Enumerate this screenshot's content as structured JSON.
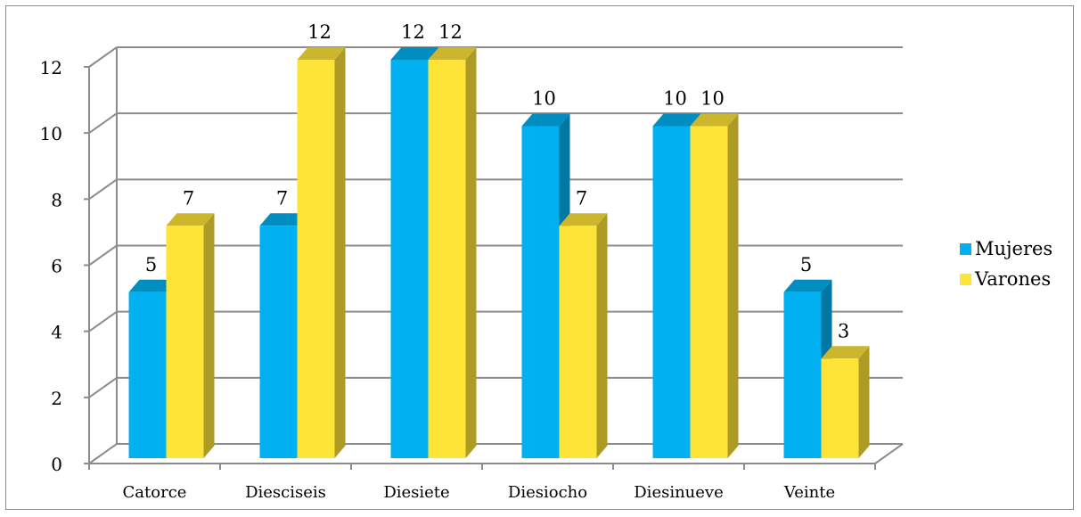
{
  "chart_data": {
    "type": "bar",
    "categories": [
      "Catorce",
      "Diesciseis",
      "Diesiete",
      "Diesiocho",
      "Diesinueve",
      "Veinte"
    ],
    "series": [
      {
        "name": "Mujeres",
        "values": [
          5,
          7,
          12,
          10,
          10,
          5
        ],
        "color": "#00B0F0"
      },
      {
        "name": "Varones",
        "values": [
          7,
          12,
          12,
          7,
          10,
          3
        ],
        "color": "#FFE438"
      }
    ],
    "yticks": [
      "0",
      "2",
      "4",
      "6",
      "8",
      "10",
      "12"
    ],
    "ylim": [
      0,
      12
    ],
    "data_labels": true,
    "grid": true,
    "legend_position": "right",
    "style": "3d-column"
  }
}
